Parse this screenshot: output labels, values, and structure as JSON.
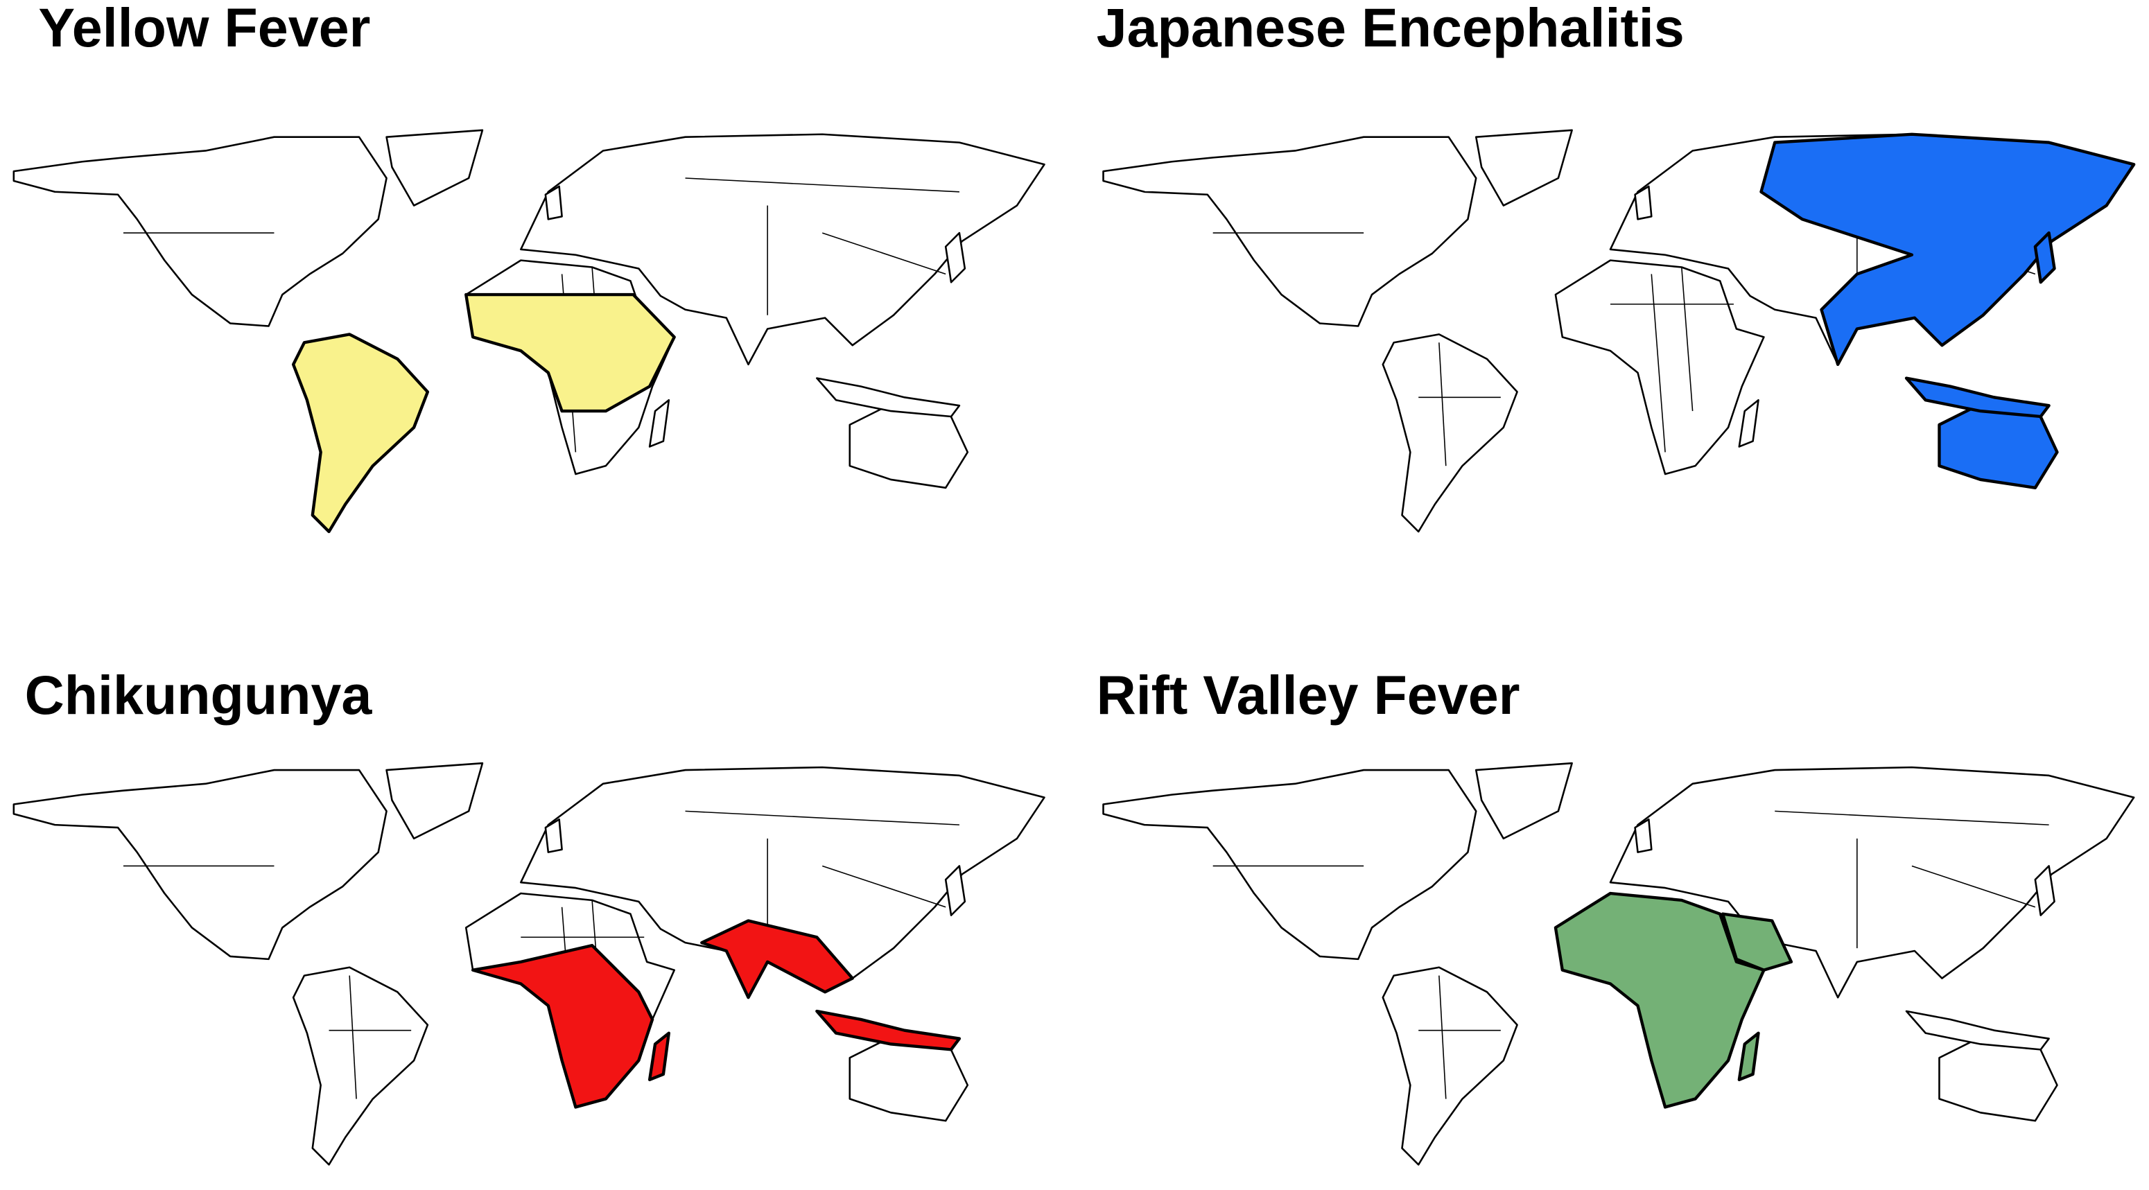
{
  "panels": [
    {
      "title": "Yellow Fever",
      "color": "#f9f28c"
    },
    {
      "title": "Japanese Encephalitis",
      "color": "#1a6ef5"
    },
    {
      "title": "Chikungunya",
      "color": "#f21414"
    },
    {
      "title": "Rift Valley Fever",
      "color": "#74b176"
    }
  ]
}
